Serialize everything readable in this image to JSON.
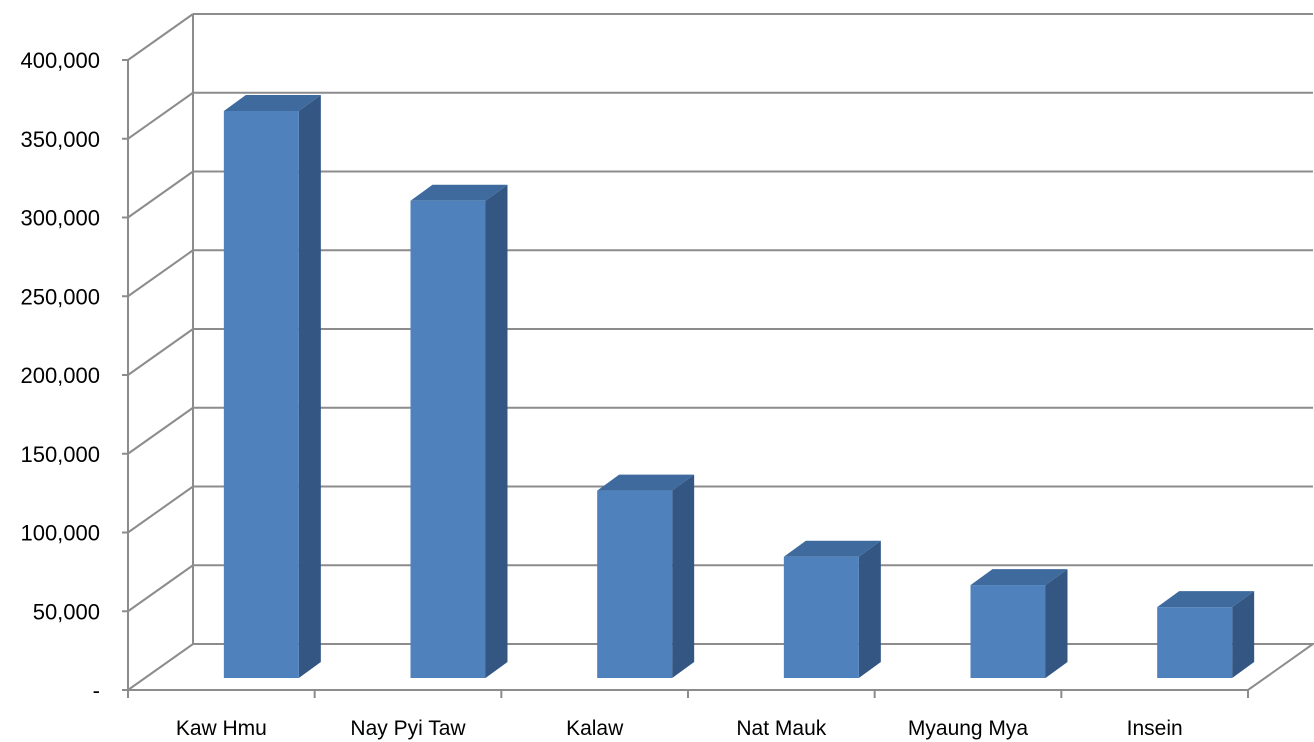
{
  "chart_data": {
    "type": "bar",
    "style": "3d-column",
    "categories": [
      "Kaw Hmu",
      "Nay Pyi Taw",
      "Kalaw",
      "Nat Mauk",
      "Myaung Mya",
      "Insein"
    ],
    "values": [
      360000,
      303000,
      119000,
      77000,
      59000,
      45000
    ],
    "ylim": [
      0,
      400000
    ],
    "yticks": [
      0,
      50000,
      100000,
      150000,
      200000,
      250000,
      300000,
      350000,
      400000
    ],
    "ytick_labels": [
      "-",
      "50,000",
      "100,000",
      "150,000",
      "200,000",
      "250,000",
      "300,000",
      "350,000",
      "400,000"
    ],
    "grid": true,
    "legend": "none",
    "colors": {
      "front": "#4f81bd",
      "side": "#335683",
      "top": "#3e6a9e",
      "grid": "#8c8c8c"
    }
  }
}
